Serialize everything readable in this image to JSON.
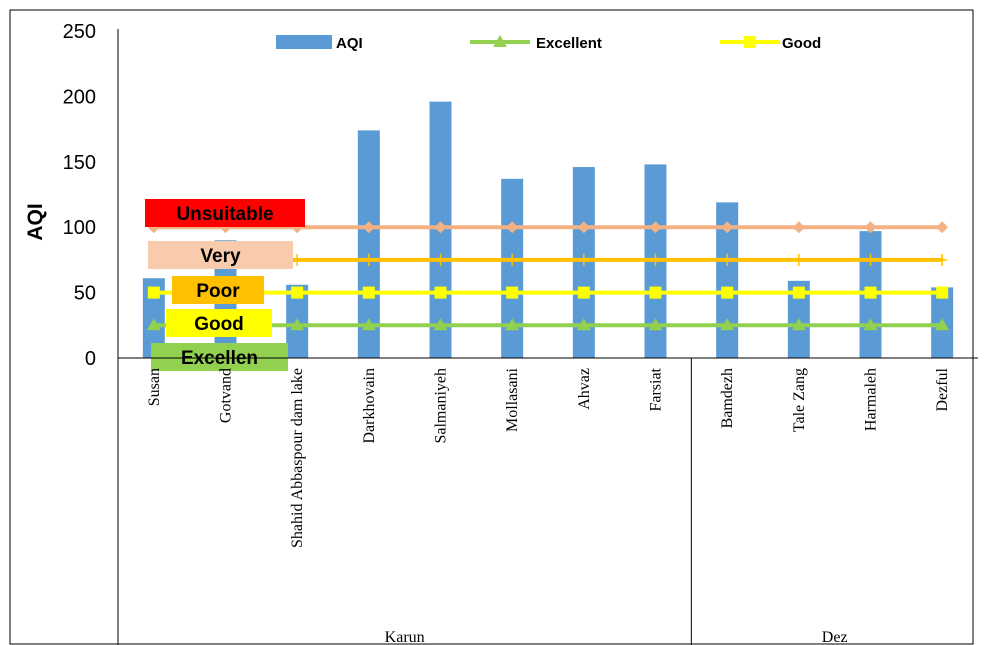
{
  "chart_data": {
    "type": "bar",
    "ylabel": "AQI",
    "ylim": [
      0,
      250
    ],
    "yticks": [
      0,
      50,
      100,
      150,
      200,
      250
    ],
    "grid": false,
    "legend_position": "top",
    "categories": [
      "Susan",
      "Gotvand",
      "Shahid Abbaspour dam lake",
      "Darkhovain",
      "Salmaniyeh",
      "Mollasani",
      "Ahvaz",
      "Farsiat",
      "Bamdezh",
      "Tale Zang",
      "Harmaleh",
      "Dezful"
    ],
    "groups": [
      {
        "label": "Karun",
        "count": 8
      },
      {
        "label": "Dez",
        "count": 4
      }
    ],
    "series": [
      {
        "name": "AQI",
        "kind": "bar",
        "color": "#5b9bd5",
        "values": [
          61,
          90,
          56,
          174,
          196,
          137,
          146,
          148,
          119,
          59,
          97,
          54
        ]
      },
      {
        "name": "Excellent",
        "kind": "line",
        "marker": "triangle",
        "color": "#92d050",
        "values": [
          25,
          25,
          25,
          25,
          25,
          25,
          25,
          25,
          25,
          25,
          25,
          25
        ]
      },
      {
        "name": "Good",
        "kind": "line",
        "marker": "square",
        "color": "#ffff00",
        "values": [
          50,
          50,
          50,
          50,
          50,
          50,
          50,
          50,
          50,
          50,
          50,
          50
        ]
      },
      {
        "kind": "line",
        "marker": "plus",
        "color": "#ffc000",
        "values": [
          75,
          75,
          75,
          75,
          75,
          75,
          75,
          75,
          75,
          75,
          75,
          75
        ]
      },
      {
        "kind": "line",
        "marker": "diamond",
        "color": "#f4b183",
        "values": [
          100,
          100,
          100,
          100,
          100,
          100,
          100,
          100,
          100,
          100,
          100,
          100
        ]
      }
    ],
    "legend": [
      "AQI",
      "Excellent",
      "Good"
    ],
    "bands": [
      {
        "label": "Unsuitable",
        "color": "#ff0000",
        "value": 100
      },
      {
        "label": "Very",
        "color": "#f8cbad",
        "value": 75
      },
      {
        "label": "Poor",
        "color": "#ffc000",
        "value": 50
      },
      {
        "label": "Good",
        "color": "#ffff00",
        "value": 25
      },
      {
        "label": "Excellen",
        "color": "#92d050",
        "value": 0
      }
    ]
  }
}
